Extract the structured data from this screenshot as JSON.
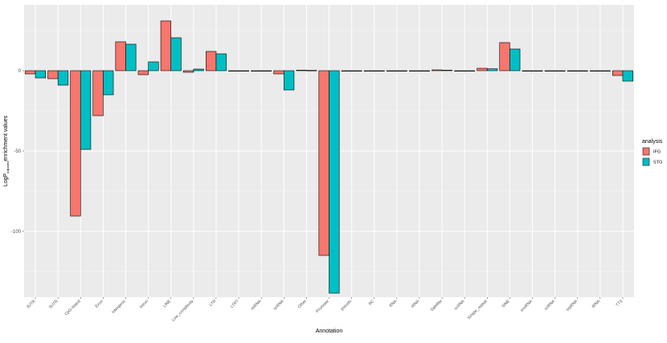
{
  "chart_data": {
    "type": "bar",
    "title": "",
    "xlabel": "Annotation",
    "ylabel_main": "LogP",
    "ylabel_sub": "adjusted",
    "ylabel_rest": "enrichment values",
    "ylim": [
      -141,
      41
    ],
    "yticks": [
      0,
      -50,
      -100
    ],
    "grid": true,
    "legend": {
      "title": "analysis",
      "position": "right"
    },
    "categories": [
      "3UTR",
      "5UTR",
      "CpG-Island",
      "Exon",
      "Intergenic",
      "Intron",
      "LINE",
      "Low_complexity",
      "LTR",
      "LTR?",
      "miRNA",
      "ncRNA",
      "Other",
      "Promoter",
      "pseudo",
      "RC",
      "RNA",
      "rRNA",
      "Satellite",
      "scRNA",
      "Simple_repeat",
      "SINE",
      "snoRNA",
      "snRNA",
      "srpRNA",
      "tRNA",
      "TTS"
    ],
    "series": [
      {
        "name": "IFG",
        "color": "#F8766D",
        "values": [
          -2,
          -5,
          -90.5,
          -28,
          18,
          -2.5,
          31,
          -1,
          12,
          0,
          0,
          -2,
          0.3,
          -115,
          0,
          0,
          0,
          0,
          0.5,
          0,
          1.5,
          17.5,
          0,
          0,
          0,
          0,
          -3
        ]
      },
      {
        "name": "STG",
        "color": "#00BFC4",
        "values": [
          -4.5,
          -9,
          -49,
          -15,
          16.5,
          5.5,
          20.5,
          1,
          10.5,
          0,
          0,
          -12,
          0.2,
          -138.5,
          0,
          0,
          0,
          0,
          0.3,
          0,
          1.2,
          13.5,
          0,
          0,
          0,
          0,
          -6.5
        ]
      }
    ]
  }
}
